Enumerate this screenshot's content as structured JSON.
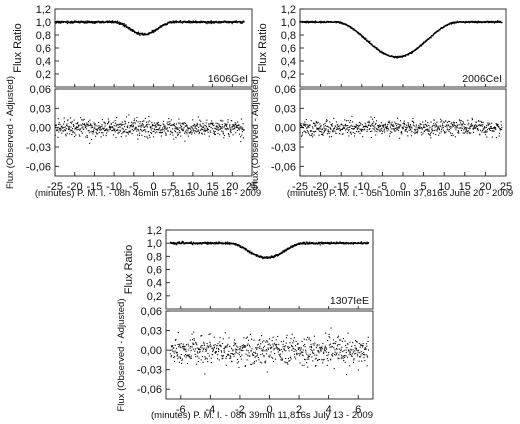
{
  "chart_data": [
    {
      "type": "scatter",
      "panel_label": "1606GeI",
      "top": {
        "ylabel": "Flux Ratio",
        "ylim": [
          0.0,
          1.2
        ],
        "yticks": [
          "0,2",
          "0,4",
          "0,6",
          "0,8",
          "1,0",
          "1,2"
        ],
        "model": {
          "baseline": 1.0,
          "min_flux": 0.81,
          "center": -2.5,
          "half_width": 7.5
        },
        "noise": 0.008
      },
      "bottom": {
        "ylabel": "Flux (Observed - Adjusted)",
        "ylim": [
          -0.075,
          0.06
        ],
        "yticks": [
          "-0,06",
          "-0,03",
          "0,00",
          "0,03",
          "0,06"
        ],
        "residual_scatter": 0.012
      },
      "xlim": [
        -25,
        25
      ],
      "xticks": [
        "-25",
        "-20",
        "-15",
        "-10",
        "-5",
        "0",
        "5",
        "10",
        "15",
        "20",
        "25"
      ],
      "xlabel": "(minutes) P. M. I. - 08h 46min 57,816s June 16 - 2009",
      "x_range": [
        -25,
        23
      ]
    },
    {
      "type": "scatter",
      "panel_label": "2006CeI",
      "top": {
        "ylabel": "Flux Ratio",
        "ylim": [
          0.0,
          1.2
        ],
        "yticks": [
          "0,2",
          "0,4",
          "0,6",
          "0,8",
          "1,0",
          "1,2"
        ],
        "model": {
          "baseline": 1.0,
          "min_flux": 0.46,
          "center": -1.5,
          "half_width": 15
        },
        "noise": 0.006
      },
      "bottom": {
        "ylabel": "Flux (Observed - Adjusted)",
        "ylim": [
          -0.075,
          0.06
        ],
        "yticks": [
          "-0,06",
          "-0,03",
          "0,00",
          "0,03",
          "0,06"
        ],
        "residual_scatter": 0.01
      },
      "xlim": [
        -25,
        25
      ],
      "xticks": [
        "-25",
        "-20",
        "-15",
        "-10",
        "-5",
        "0",
        "5",
        "10",
        "15",
        "20",
        "25"
      ],
      "xlabel": "(minutes) P. M. I. - 05h 10min 37,816s June 20 - 2009",
      "x_range": [
        -25,
        24
      ]
    },
    {
      "type": "scatter",
      "panel_label": "1307IeE",
      "top": {
        "ylabel": "Flux Ratio",
        "ylim": [
          0.0,
          1.2
        ],
        "yticks": [
          "0,2",
          "0,4",
          "0,6",
          "0,8",
          "1,0",
          "1,2"
        ],
        "model": {
          "baseline": 1.0,
          "min_flux": 0.78,
          "center": -0.2,
          "half_width": 2.6
        },
        "noise": 0.008
      },
      "bottom": {
        "ylabel": "Flux (Observed - Adjusted)",
        "ylim": [
          -0.075,
          0.06
        ],
        "yticks": [
          "-0,06",
          "-0,03",
          "0,00",
          "0,03",
          "0,06"
        ],
        "residual_scatter": 0.018
      },
      "xlim": [
        -7,
        7
      ],
      "xticks": [
        "-6",
        "-4",
        "-2",
        "0",
        "2",
        "4",
        "6"
      ],
      "xlabel": "(minutes) P. M. I. - 08h 39min 11,816s July 13 - 2009",
      "x_range": [
        -6.7,
        6.7
      ]
    }
  ]
}
